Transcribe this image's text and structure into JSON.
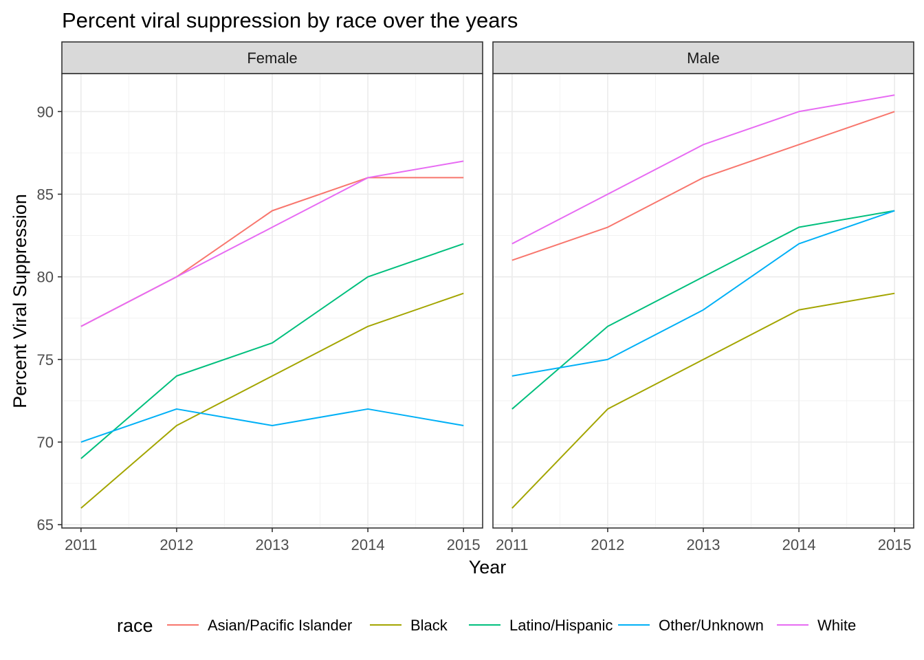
{
  "chart_data": {
    "type": "line",
    "title": "Percent viral suppression by race over the years",
    "xlabel": "Year",
    "ylabel": "Percent Viral Suppression",
    "x": [
      2011,
      2012,
      2013,
      2014,
      2015
    ],
    "x_ticks": [
      "2011",
      "2012",
      "2013",
      "2014",
      "2015"
    ],
    "y_ticks": [
      65,
      70,
      75,
      80,
      85,
      90
    ],
    "xlim": [
      2010.8,
      2015.2
    ],
    "ylim": [
      64.8,
      92.3
    ],
    "grid": true,
    "legend_title": "race",
    "legend_position": "bottom",
    "series_colors": {
      "Asian/Pacific Islander": "#F8766D",
      "Black": "#A3A500",
      "Latino/Hispanic": "#00BF7D",
      "Other/Unknown": "#00B0F6",
      "White": "#E76BF3"
    },
    "facets": [
      {
        "label": "Female",
        "series": [
          {
            "name": "Asian/Pacific Islander",
            "values": [
              77,
              80,
              84,
              86,
              86
            ]
          },
          {
            "name": "Black",
            "values": [
              66,
              71,
              74,
              77,
              79
            ]
          },
          {
            "name": "Latino/Hispanic",
            "values": [
              69,
              74,
              76,
              80,
              82
            ]
          },
          {
            "name": "Other/Unknown",
            "values": [
              70,
              72,
              71,
              72,
              71
            ]
          },
          {
            "name": "White",
            "values": [
              77,
              80,
              83,
              86,
              87
            ]
          }
        ]
      },
      {
        "label": "Male",
        "series": [
          {
            "name": "Asian/Pacific Islander",
            "values": [
              81,
              83,
              86,
              88,
              90
            ]
          },
          {
            "name": "Black",
            "values": [
              66,
              72,
              75,
              78,
              79
            ]
          },
          {
            "name": "Latino/Hispanic",
            "values": [
              72,
              77,
              80,
              83,
              84
            ]
          },
          {
            "name": "Other/Unknown",
            "values": [
              74,
              75,
              78,
              82,
              84
            ]
          },
          {
            "name": "White",
            "values": [
              82,
              85,
              88,
              90,
              91
            ]
          }
        ]
      }
    ]
  }
}
